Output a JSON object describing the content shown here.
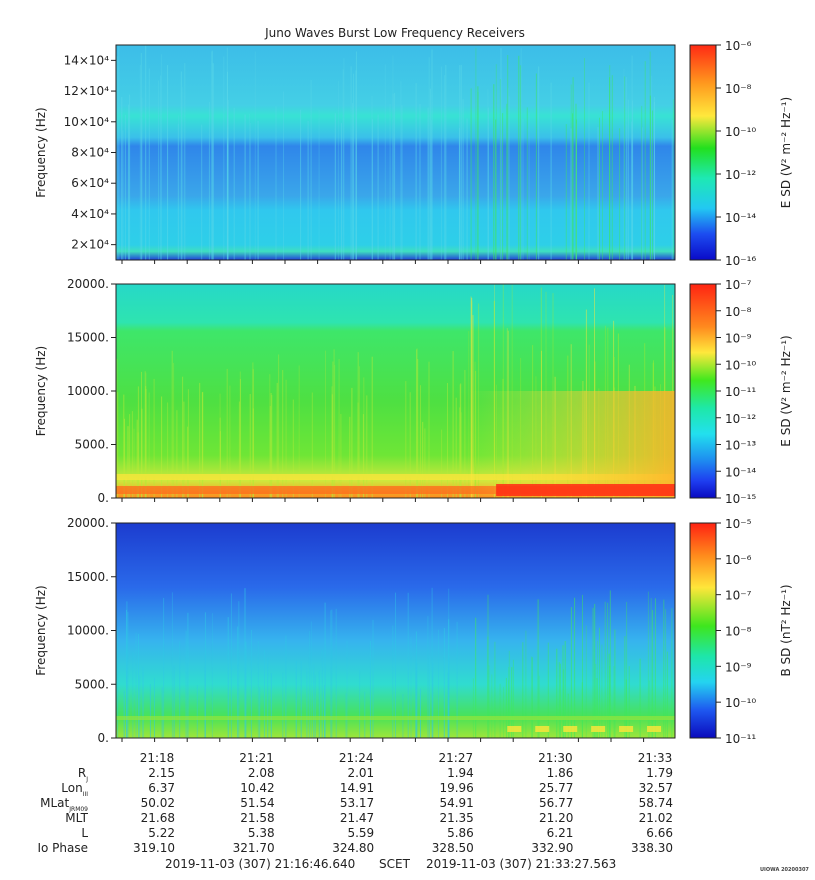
{
  "title": "Juno Waves Burst Low Frequency Receivers",
  "panels": [
    {
      "id": "high",
      "ylabel": "Frequency (Hz)",
      "yticks": [
        {
          "value": 20000,
          "label": "2×10⁴"
        },
        {
          "value": 40000,
          "label": "4×10⁴"
        },
        {
          "value": 60000,
          "label": "6×10⁴"
        },
        {
          "value": 80000,
          "label": "8×10⁴"
        },
        {
          "value": 100000,
          "label": "10×10⁴"
        },
        {
          "value": 120000,
          "label": "12×10⁴"
        },
        {
          "value": 140000,
          "label": "14×10⁴"
        }
      ],
      "colorbar_label": "E SD (V² m⁻² Hz⁻¹)",
      "colorbar_ticks": [
        "10⁻⁶",
        "10⁻⁸",
        "10⁻¹⁰",
        "10⁻¹²",
        "10⁻¹⁴",
        "10⁻¹⁶"
      ]
    },
    {
      "id": "low-e",
      "ylabel": "Frequency (Hz)",
      "yticks": [
        {
          "value": 0,
          "label": "0."
        },
        {
          "value": 5000,
          "label": "5000."
        },
        {
          "value": 10000,
          "label": "10000."
        },
        {
          "value": 15000,
          "label": "15000."
        },
        {
          "value": 20000,
          "label": "20000."
        }
      ],
      "colorbar_label": "E SD (V² m⁻² Hz⁻¹)",
      "colorbar_ticks": [
        "10⁻⁷",
        "10⁻⁸",
        "10⁻⁹",
        "10⁻¹⁰",
        "10⁻¹¹",
        "10⁻¹²",
        "10⁻¹³",
        "10⁻¹⁴",
        "10⁻¹⁵"
      ]
    },
    {
      "id": "low-b",
      "ylabel": "Frequency (Hz)",
      "yticks": [
        {
          "value": 0,
          "label": "0."
        },
        {
          "value": 5000,
          "label": "5000."
        },
        {
          "value": 10000,
          "label": "10000."
        },
        {
          "value": 15000,
          "label": "15000."
        },
        {
          "value": 20000,
          "label": "20000."
        }
      ],
      "colorbar_label": "B SD (nT² Hz⁻¹)",
      "colorbar_ticks": [
        "10⁻⁵",
        "10⁻⁶",
        "10⁻⁷",
        "10⁻⁸",
        "10⁻⁹",
        "10⁻¹⁰",
        "10⁻¹¹"
      ]
    }
  ],
  "chart_data": {
    "type": "heatmap",
    "title": "Juno Waves Burst Low Frequency Receivers",
    "x_axis": {
      "label": "SCET",
      "start": "2019-11-03 (307) 21:16:46.640",
      "end": "2019-11-03 (307) 21:33:27.563",
      "tick_labels": [
        "21:18",
        "21:21",
        "21:24",
        "21:27",
        "21:30",
        "21:33"
      ]
    },
    "panels": [
      {
        "ylabel": "Frequency (Hz)",
        "ylim": [
          10000,
          150000
        ],
        "colorbar": "E SD (V² m⁻² Hz⁻¹)",
        "clim": [
          "1e-16",
          "1e-6"
        ],
        "scale": "log"
      },
      {
        "ylabel": "Frequency (Hz)",
        "ylim": [
          0,
          20000
        ],
        "colorbar": "E SD (V² m⁻² Hz⁻¹)",
        "clim": [
          "1e-15",
          "1e-7"
        ],
        "scale": "log"
      },
      {
        "ylabel": "Frequency (Hz)",
        "ylim": [
          0,
          20000
        ],
        "colorbar": "B SD (nT² Hz⁻¹)",
        "clim": [
          "1e-11",
          "1e-5"
        ],
        "scale": "log"
      }
    ]
  },
  "ephemeris": {
    "rows": [
      {
        "label": "R",
        "sub": "J",
        "values": [
          "2.15",
          "2.08",
          "2.01",
          "1.94",
          "1.86",
          "1.79"
        ]
      },
      {
        "label": "Lon",
        "sub": "III",
        "values": [
          "6.37",
          "10.42",
          "14.91",
          "19.96",
          "25.77",
          "32.57"
        ]
      },
      {
        "label": "MLat",
        "sub": "JRM09",
        "values": [
          "50.02",
          "51.54",
          "53.17",
          "54.91",
          "56.77",
          "58.74"
        ]
      },
      {
        "label": "MLT",
        "sub": "",
        "values": [
          "21.68",
          "21.58",
          "21.47",
          "21.35",
          "21.20",
          "21.02"
        ]
      },
      {
        "label": "L",
        "sub": "",
        "values": [
          "5.22",
          "5.38",
          "5.59",
          "5.86",
          "6.21",
          "6.66"
        ]
      },
      {
        "label": "Io Phase",
        "sub": "",
        "values": [
          "319.10",
          "321.70",
          "324.80",
          "328.50",
          "332.90",
          "338.30"
        ]
      }
    ]
  },
  "footer": {
    "start": "2019-11-03 (307) 21:16:46.640",
    "scet": "SCET",
    "end": "2019-11-03 (307) 21:33:27.563",
    "stamp": "UIOWA 20200307"
  }
}
